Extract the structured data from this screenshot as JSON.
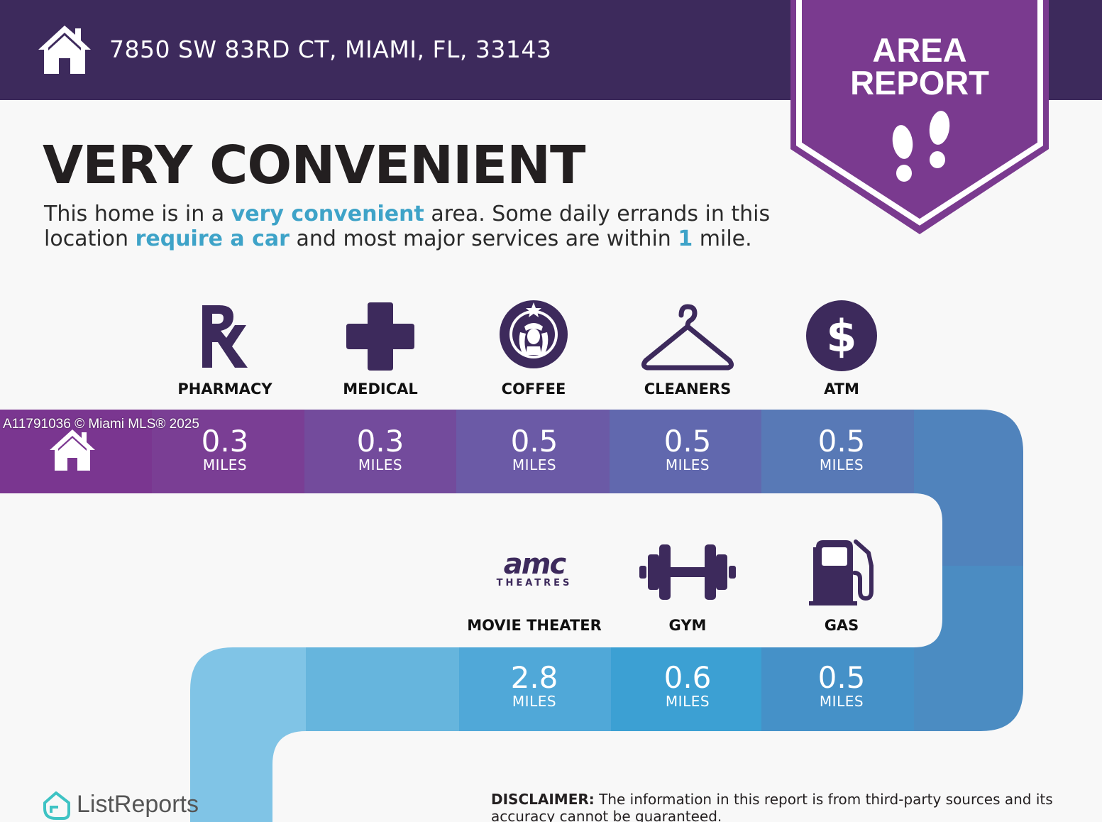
{
  "header": {
    "address": "7850 SW 83RD CT, MIAMI, FL, 33143",
    "badge_line1": "AREA",
    "badge_line2": "REPORT"
  },
  "headline": "VERY CONVENIENT",
  "description": {
    "p1": "This home is in a ",
    "h1": "very convenient",
    "p2": " area. Some daily errands in this location ",
    "h2": "require a car",
    "p3": " and most major services are within ",
    "h3": "1",
    "p4": " mile."
  },
  "row1": [
    {
      "label": "PHARMACY",
      "value": "0.3",
      "unit": "MILES",
      "icon": "rx-icon"
    },
    {
      "label": "MEDICAL",
      "value": "0.3",
      "unit": "MILES",
      "icon": "medical-cross-icon"
    },
    {
      "label": "COFFEE",
      "value": "0.5",
      "unit": "MILES",
      "icon": "coffee-logo-icon"
    },
    {
      "label": "CLEANERS",
      "value": "0.5",
      "unit": "MILES",
      "icon": "hanger-icon"
    },
    {
      "label": "ATM",
      "value": "0.5",
      "unit": "MILES",
      "icon": "dollar-icon"
    }
  ],
  "row2": [
    {
      "label": "MOVIE THEATER",
      "value": "2.8",
      "unit": "MILES",
      "icon": "movie-theater-logo-icon"
    },
    {
      "label": "GYM",
      "value": "0.6",
      "unit": "MILES",
      "icon": "dumbbell-icon"
    },
    {
      "label": "GAS",
      "value": "0.5",
      "unit": "MILES",
      "icon": "gas-pump-icon"
    }
  ],
  "amc": {
    "logo": "amc",
    "sub": "THEATRES"
  },
  "watermark": "A11791036 © Miami MLS® 2025",
  "brand": "ListReports",
  "disclaimer": {
    "label": "DISCLAIMER:",
    "text": " The information in this report is from third-party sources and its accuracy cannot be guaranteed."
  },
  "colors": {
    "header_bg": "#3d2a5c",
    "badge": "#7a3a8f",
    "highlight": "#3ea3c8",
    "icon": "#3d2a5c"
  }
}
